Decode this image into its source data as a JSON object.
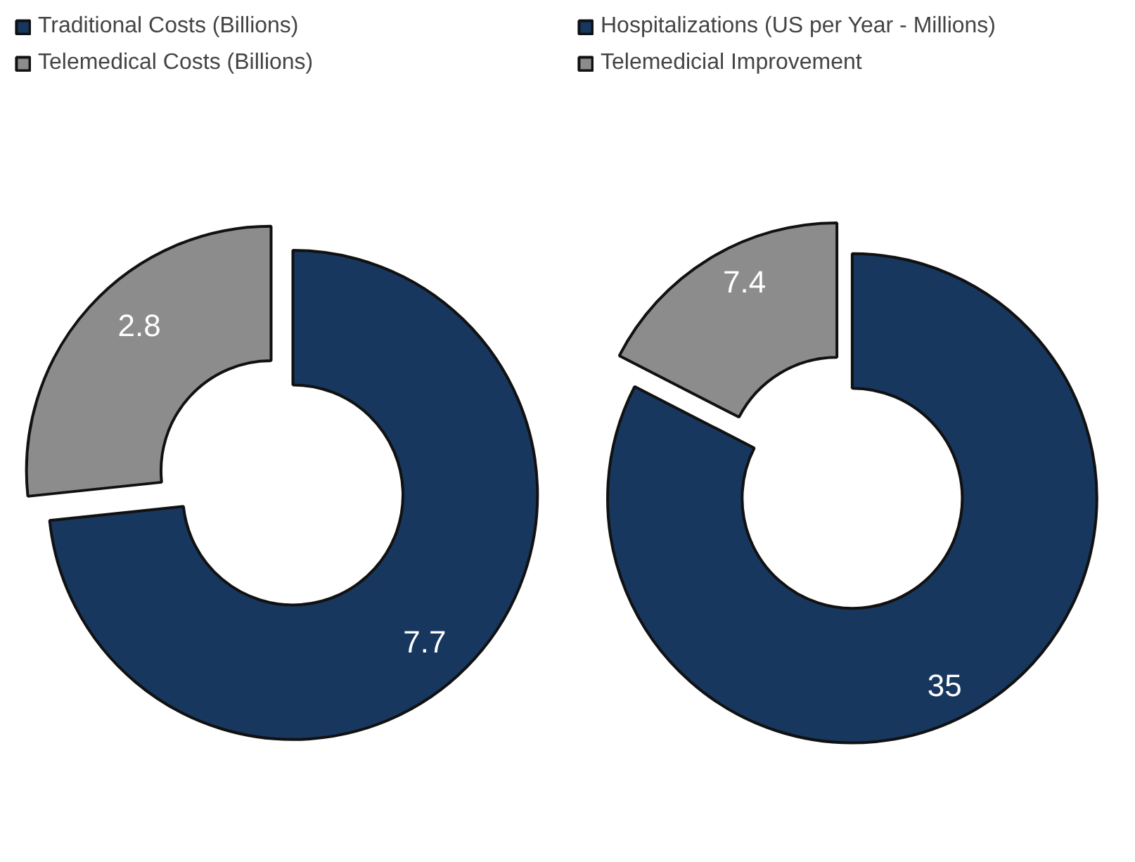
{
  "chart_data": [
    {
      "type": "donut",
      "categories": [
        "Traditional Costs (Billions)",
        "Telemedical Costs (Billions)"
      ],
      "values": [
        7.7,
        2.8
      ],
      "colors": [
        "#17375e",
        "#8c8c8c"
      ],
      "data_labels": true,
      "legend": "top left"
    },
    {
      "type": "donut",
      "categories": [
        "Hospitalizations (US per Year - Millions)",
        "Telemedicial Improvement"
      ],
      "values": [
        35,
        7.4
      ],
      "colors": [
        "#17375e",
        "#8c8c8c"
      ],
      "data_labels": true,
      "legend": "top left"
    }
  ]
}
